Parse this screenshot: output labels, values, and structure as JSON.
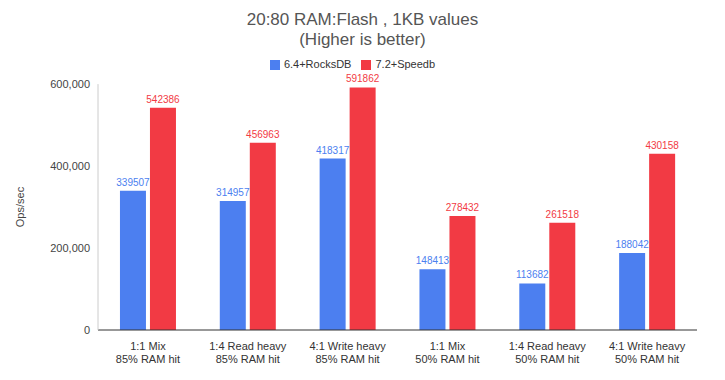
{
  "chart_data": {
    "type": "bar",
    "title": "20:80 RAM:Flash , 1KB values",
    "subtitle": "(Higher is better)",
    "y_label": "Ops/sec",
    "categories": [
      "1:1 Mix\n85% RAM hit",
      "1:4 Read heavy\n85% RAM hit",
      "4:1 Write heavy\n85% RAM hit",
      "1:1 Mix\n50% RAM hit",
      "1:4 Read heavy\n50% RAM hit",
      "4:1 Write heavy\n50% RAM hit"
    ],
    "series": [
      {
        "name": "6.4+RocksDB",
        "color": "#4c7ff0",
        "values": [
          339507,
          314957,
          418317,
          148413,
          113682,
          188042
        ]
      },
      {
        "name": "7.2+Speedb",
        "color": "#f23a44",
        "values": [
          542386,
          456963,
          591862,
          278432,
          261518,
          430158
        ]
      }
    ],
    "ylim": [
      0,
      600000
    ],
    "yticks": [
      0,
      {
        "value": 200000,
        "label": "200,000"
      },
      {
        "value": 400000,
        "label": "400,000"
      },
      {
        "value": 600000,
        "label": "600,000"
      }
    ],
    "grid": false,
    "legend": "top",
    "data_labels": true
  }
}
